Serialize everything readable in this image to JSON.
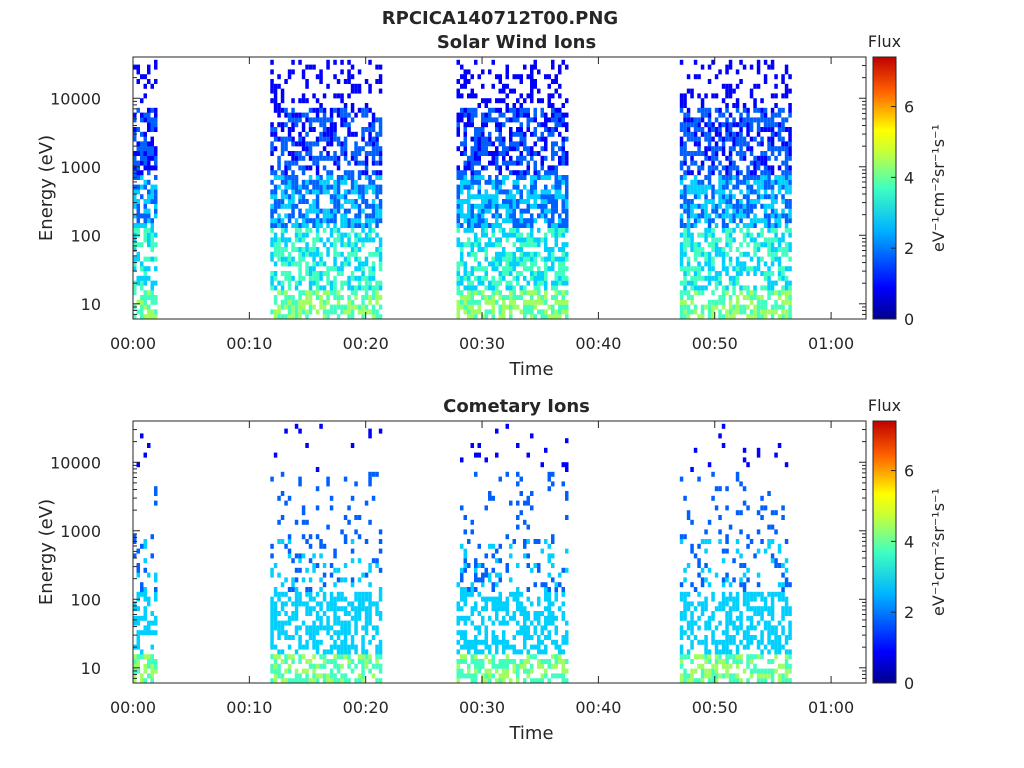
{
  "figure_title": "RPCICA140712T00.PNG",
  "colormap": [
    "#00008f",
    "#0000ff",
    "#0060ff",
    "#00d0ff",
    "#40ffbf",
    "#a0ff60",
    "#ffff00",
    "#ff9000",
    "#ff2000",
    "#800000"
  ],
  "chart_data": [
    {
      "type": "heatmap",
      "title": "Solar Wind Ions",
      "xlabel": "Time",
      "ylabel": "Energy (eV)",
      "x_ticks": [
        "00:00",
        "00:10",
        "00:20",
        "00:30",
        "00:40",
        "00:50",
        "01:00"
      ],
      "x_range_minutes": [
        0,
        63
      ],
      "y_ticks": [
        "10",
        "100",
        "1000",
        "10000"
      ],
      "y_scale": "log",
      "y_range_eV": [
        6,
        40000
      ],
      "colorbar": {
        "label": "Flux",
        "unit": "eV⁻¹cm⁻²sr⁻¹s⁻¹",
        "ticks": [
          "0",
          "2",
          "4",
          "6"
        ],
        "range": [
          0,
          7.4
        ]
      },
      "segments_minutes": [
        [
          0.0,
          2.0
        ],
        [
          11.8,
          21.2
        ],
        [
          27.8,
          37.2
        ],
        [
          47.0,
          56.6
        ]
      ],
      "density": "high"
    },
    {
      "type": "heatmap",
      "title": "Cometary Ions",
      "xlabel": "Time",
      "ylabel": "Energy (eV)",
      "x_ticks": [
        "00:00",
        "00:10",
        "00:20",
        "00:30",
        "00:40",
        "00:50",
        "01:00"
      ],
      "x_range_minutes": [
        0,
        63
      ],
      "y_ticks": [
        "10",
        "100",
        "1000",
        "10000"
      ],
      "y_scale": "log",
      "y_range_eV": [
        6,
        40000
      ],
      "colorbar": {
        "label": "Flux",
        "unit": "eV⁻¹cm⁻²sr⁻¹s⁻¹",
        "ticks": [
          "0",
          "2",
          "4",
          "6"
        ],
        "range": [
          0,
          7.4
        ]
      },
      "segments_minutes": [
        [
          0.0,
          2.0
        ],
        [
          11.8,
          21.2
        ],
        [
          27.8,
          37.2
        ],
        [
          47.0,
          56.6
        ]
      ],
      "density": "low"
    }
  ]
}
